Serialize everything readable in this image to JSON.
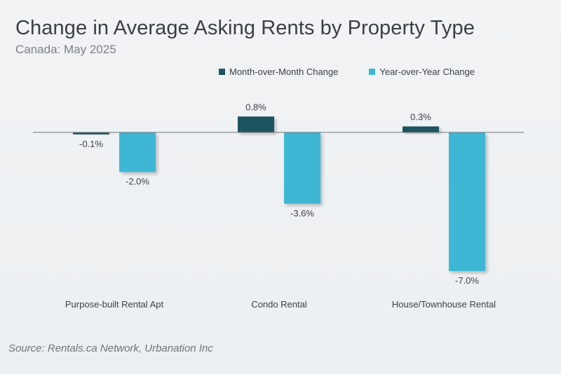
{
  "title": "Change in Average Asking Rents by Property Type",
  "subtitle": "Canada: May 2025",
  "source": "Source: Rentals.ca Network, Urbanation Inc",
  "colors": {
    "mom": "#1f5561",
    "yoy": "#3eb7d4",
    "axis": "#6e7478",
    "label": "#3c4147"
  },
  "chart_data": {
    "type": "bar",
    "categories": [
      "Purpose-built Rental Apt",
      "Condo Rental",
      "House/Townhouse Rental"
    ],
    "series": [
      {
        "name": "Month-over-Month Change",
        "values": [
          -0.1,
          0.8,
          0.3
        ],
        "labels": [
          "-0.1%",
          "0.8%",
          "0.3%"
        ]
      },
      {
        "name": "Year-over-Year Change",
        "values": [
          -2.0,
          -3.6,
          -7.0
        ],
        "labels": [
          "-2.0%",
          "-3.6%",
          "-7.0%"
        ]
      }
    ],
    "ylim": [
      -7.5,
      1.0
    ],
    "legend": "top",
    "grid": false
  }
}
